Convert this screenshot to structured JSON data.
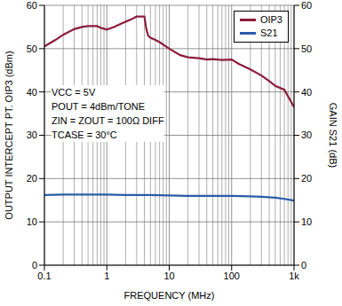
{
  "chart_data": {
    "type": "line",
    "xlabel": "FREQUENCY (MHz)",
    "ylabel": "OUTPUT INTERCEPT PT. OIP3 (dBm)",
    "y2label": "GAIN S21 (dB)",
    "annotations": [
      "VCC = 5V",
      "POUT = 4dBm/TONE",
      "ZIN = ZOUT = 100Ω DIFF",
      "TCASE = 30°C"
    ],
    "log": "x",
    "grid": true,
    "legend": "upper right",
    "xlim": [
      0.1,
      1000
    ],
    "xticks": [
      0.1,
      1,
      10,
      100,
      {
        "value": 1000,
        "label": "1k"
      }
    ],
    "ylim": [
      0,
      60
    ],
    "yticks": [
      0,
      10,
      20,
      30,
      40,
      50,
      60
    ],
    "y2lim": [
      0,
      60
    ],
    "y2ticks": [
      0,
      10,
      20,
      30,
      40,
      50,
      60
    ],
    "series": [
      {
        "name": "OIP3",
        "color": "#8c1c3c",
        "x": [
          0.1,
          0.15,
          0.2,
          0.3,
          0.4,
          0.5,
          0.7,
          0.8,
          1,
          1.3,
          1.6,
          2,
          2.5,
          3,
          3.5,
          4,
          4.3,
          4.6,
          5,
          6,
          7,
          10,
          15,
          20,
          30,
          40,
          50,
          70,
          100,
          130,
          200,
          300,
          400,
          500,
          700,
          1000
        ],
        "values": [
          50.5,
          52,
          53.2,
          54.5,
          55,
          55.2,
          55.2,
          54.8,
          54.4,
          55,
          55.6,
          56.2,
          56.8,
          57.4,
          57.4,
          57.4,
          54.5,
          53,
          52.5,
          52,
          51.5,
          50,
          48.5,
          48,
          47.8,
          47.5,
          47.6,
          47.4,
          47.5,
          46.5,
          45.2,
          43.8,
          42.5,
          41.4,
          40.5,
          36.5
        ]
      },
      {
        "name": "S21",
        "color": "#2a5caa",
        "axis": "y2",
        "x": [
          0.1,
          0.2,
          0.5,
          1,
          2,
          5,
          10,
          20,
          50,
          100,
          200,
          300,
          500,
          700,
          1000
        ],
        "values": [
          16.2,
          16.3,
          16.3,
          16.3,
          16.2,
          16.2,
          16.1,
          16,
          16,
          16,
          15.9,
          15.8,
          15.6,
          15.3,
          14.9
        ]
      }
    ]
  }
}
